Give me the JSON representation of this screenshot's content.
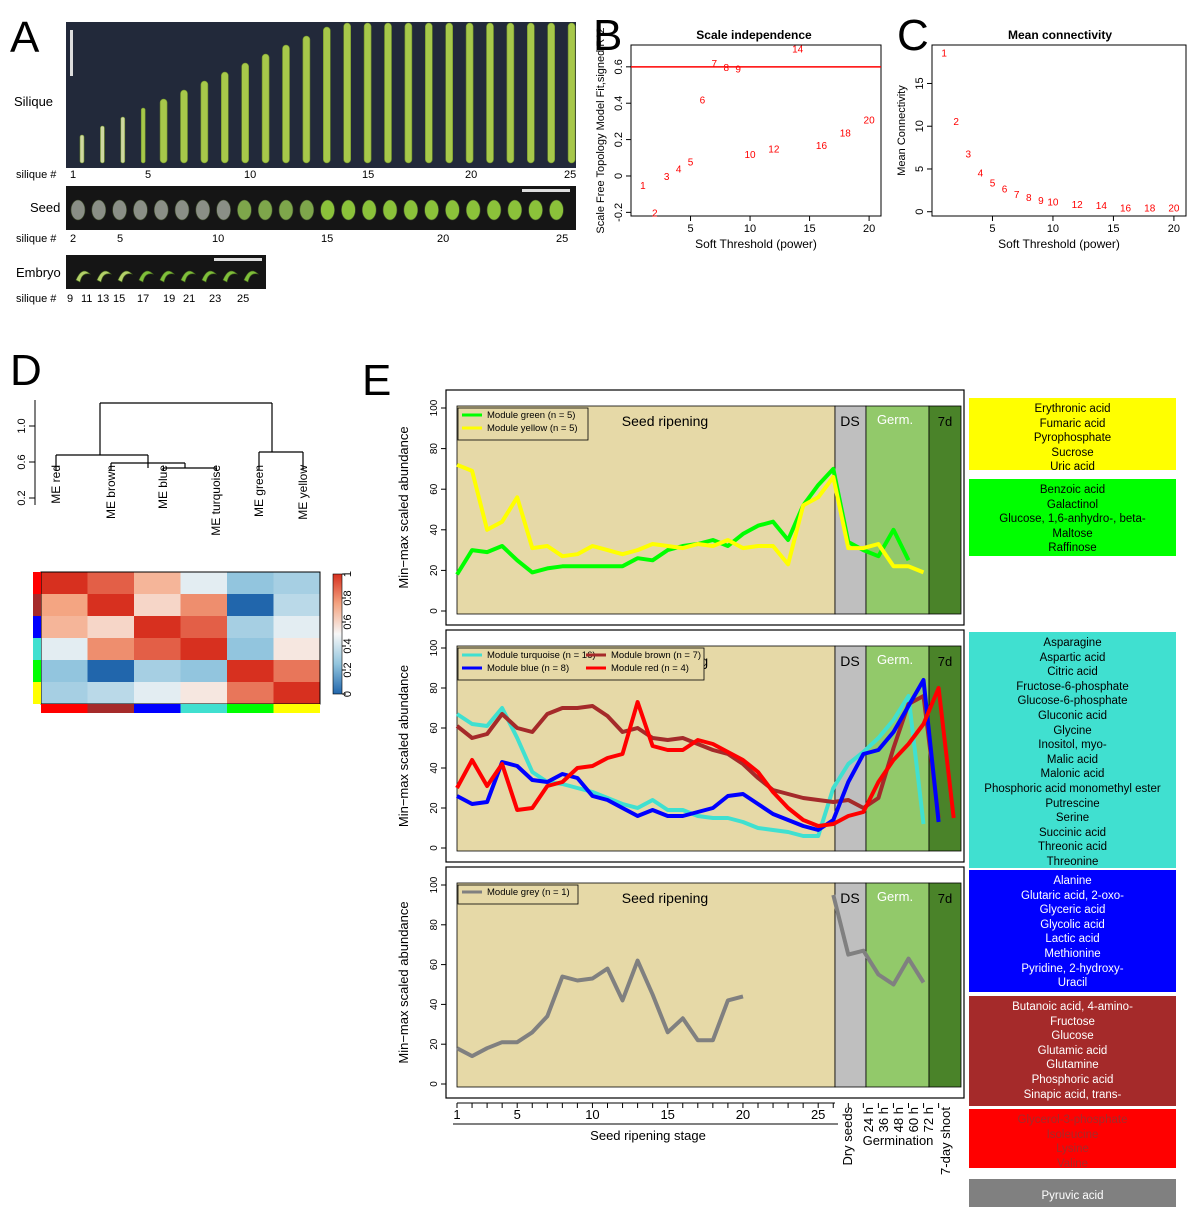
{
  "panels": {
    "A": {
      "letter": "A",
      "rows": [
        {
          "label": "Silique",
          "sublabel": "silique #",
          "ticks": [
            "1",
            "5",
            "10",
            "15",
            "20",
            "25"
          ]
        },
        {
          "label": "Seed",
          "sublabel": "silique #",
          "ticks": [
            "2",
            "5",
            "10",
            "15",
            "20",
            "25"
          ]
        },
        {
          "label": "Embryo",
          "sublabel": "silique #",
          "ticks": [
            "9",
            "11",
            "13",
            "15",
            "17",
            "19",
            "21",
            "23",
            "25"
          ]
        }
      ]
    },
    "B": {
      "letter": "B"
    },
    "C": {
      "letter": "C"
    },
    "D": {
      "letter": "D",
      "dendrogram_yticks": [
        "0.2",
        "0.6",
        "1.0"
      ],
      "leaves": [
        "ME red",
        "ME brown",
        "ME blue",
        "ME turquoise",
        "ME green",
        "ME yellow"
      ],
      "heatmap_row_colors": [
        "#ff0000",
        "#a52a2a",
        "#0000ff",
        "#40e0d0",
        "#00ff00",
        "#ffff00"
      ],
      "heatmap_values": [
        [
          1.0,
          0.9,
          0.7,
          0.45,
          0.25,
          0.3
        ],
        [
          0.75,
          1.0,
          0.6,
          0.8,
          0.0,
          0.35
        ],
        [
          0.7,
          0.6,
          1.0,
          0.9,
          0.3,
          0.45
        ],
        [
          0.45,
          0.8,
          0.9,
          1.0,
          0.25,
          0.55
        ],
        [
          0.25,
          0.0,
          0.3,
          0.25,
          1.0,
          0.85
        ],
        [
          0.3,
          0.35,
          0.45,
          0.55,
          0.85,
          1.0
        ]
      ],
      "scale_ticks": [
        "1",
        "0.8",
        "0.6",
        "0.4",
        "0.2",
        "0"
      ]
    },
    "E": {
      "letter": "E",
      "region_labels": {
        "ripening": "Seed ripening",
        "ds": "DS",
        "germ": "Germ.",
        "shoot": "7d"
      },
      "ylabel": "Min−max scaled abundance",
      "yticks": [
        "0",
        "20",
        "40",
        "60",
        "80",
        "100"
      ],
      "xticks_numbers": [
        "1",
        "5",
        "10",
        "15",
        "20",
        "25"
      ],
      "xticks_rotated": [
        "Dry seeds",
        "24 h",
        "36 h",
        "48 h",
        "60 h",
        "72 h",
        "7-day shoot"
      ],
      "xlabel_ripening": "Seed ripening stage",
      "xlabel_germination": "Germination",
      "legends": [
        [
          "Module green (n = 5)",
          "Module yellow (n = 5)"
        ],
        [
          "Module turquoise (n = 16)",
          "Module brown (n = 7)",
          "Module blue (n = 8)",
          "Module red (n = 4)"
        ],
        [
          "Module grey (n = 1)"
        ]
      ],
      "metabolite_boxes": [
        {
          "color": "#ffff00",
          "text_color": "#000000",
          "items": [
            "Erythronic acid",
            "Fumaric acid",
            "Pyrophosphate",
            "Sucrose",
            "Uric acid"
          ]
        },
        {
          "color": "#00ff00",
          "text_color": "#000000",
          "items": [
            "Benzoic acid",
            "Galactinol",
            "Glucose, 1,6-anhydro-, beta-",
            "Maltose",
            "Raffinose"
          ]
        },
        {
          "color": "#40e0d0",
          "text_color": "#000000",
          "items": [
            "Asparagine",
            "Aspartic acid",
            "Citric acid",
            "Fructose-6-phosphate",
            "Glucose-6-phosphate",
            "Gluconic acid",
            "Glycine",
            "Inositol, myo-",
            "Malic acid",
            "Malonic acid",
            "Phosphoric acid monomethyl ester",
            "Putrescine",
            "Serine",
            "Succinic acid",
            "Threonic acid",
            "Threonine"
          ]
        },
        {
          "color": "#0000ff",
          "text_color": "#ffffff",
          "items": [
            "Alanine",
            "Glutaric acid, 2-oxo-",
            "Glyceric acid",
            "Glycolic acid",
            "Lactic acid",
            "Methionine",
            "Pyridine, 2-hydroxy-",
            "Uracil"
          ]
        },
        {
          "color": "#a52a2a",
          "text_color": "#ffffff",
          "items": [
            "Butanoic acid, 4-amino-",
            "Fructose",
            "Glucose",
            "Glutamic acid",
            "Glutamine",
            "Phosphoric acid",
            "Sinapic acid, trans-"
          ]
        },
        {
          "color": "#ff0000",
          "text_color": "#a52a2a",
          "items": [
            "Glycerol-3-phosphate",
            "Isoleucine",
            "Lysine",
            "Valine"
          ]
        },
        {
          "color": "#808080",
          "text_color": "#ffffff",
          "items": [
            "Pyruvic acid"
          ]
        }
      ]
    }
  },
  "chart_data": [
    {
      "panel": "B",
      "type": "scatter",
      "title": "Scale independence",
      "xlabel": "Soft Threshold (power)",
      "ylabel": "Scale Free Topology Model Fit,signed R^2",
      "xlim": [
        0,
        21
      ],
      "ylim": [
        -0.22,
        0.72
      ],
      "xticks": [
        5,
        10,
        15,
        20
      ],
      "yticks": [
        -0.2,
        0.0,
        0.2,
        0.4,
        0.6
      ],
      "hline": 0.6,
      "points": [
        {
          "x": 1,
          "y": -0.05,
          "label": "1"
        },
        {
          "x": 2,
          "y": -0.2,
          "label": "2"
        },
        {
          "x": 3,
          "y": 0.0,
          "label": "3"
        },
        {
          "x": 4,
          "y": 0.04,
          "label": "4"
        },
        {
          "x": 5,
          "y": 0.08,
          "label": "5"
        },
        {
          "x": 6,
          "y": 0.42,
          "label": "6"
        },
        {
          "x": 7,
          "y": 0.62,
          "label": "7"
        },
        {
          "x": 8,
          "y": 0.6,
          "label": "8"
        },
        {
          "x": 9,
          "y": 0.59,
          "label": "9"
        },
        {
          "x": 10,
          "y": 0.12,
          "label": "10"
        },
        {
          "x": 12,
          "y": 0.15,
          "label": "12"
        },
        {
          "x": 14,
          "y": 0.7,
          "label": "14"
        },
        {
          "x": 16,
          "y": 0.17,
          "label": "16"
        },
        {
          "x": 18,
          "y": 0.24,
          "label": "18"
        },
        {
          "x": 20,
          "y": 0.31,
          "label": "20"
        }
      ]
    },
    {
      "panel": "C",
      "type": "scatter",
      "title": "Mean connectivity",
      "xlabel": "Soft Threshold (power)",
      "ylabel": "Mean Connectivity",
      "xlim": [
        0,
        21
      ],
      "ylim": [
        -0.5,
        19.5
      ],
      "xticks": [
        5,
        10,
        15,
        20
      ],
      "yticks": [
        0,
        5,
        10,
        15
      ],
      "points": [
        {
          "x": 1,
          "y": 18.6,
          "label": "1"
        },
        {
          "x": 2,
          "y": 10.6,
          "label": "2"
        },
        {
          "x": 3,
          "y": 6.8,
          "label": "3"
        },
        {
          "x": 4,
          "y": 4.6,
          "label": "4"
        },
        {
          "x": 5,
          "y": 3.4,
          "label": "5"
        },
        {
          "x": 6,
          "y": 2.7,
          "label": "6"
        },
        {
          "x": 7,
          "y": 2.1,
          "label": "7"
        },
        {
          "x": 8,
          "y": 1.7,
          "label": "8"
        },
        {
          "x": 9,
          "y": 1.4,
          "label": "9"
        },
        {
          "x": 10,
          "y": 1.2,
          "label": "10"
        },
        {
          "x": 12,
          "y": 0.9,
          "label": "12"
        },
        {
          "x": 14,
          "y": 0.8,
          "label": "14"
        },
        {
          "x": 16,
          "y": 0.5,
          "label": "16"
        },
        {
          "x": 18,
          "y": 0.5,
          "label": "18"
        },
        {
          "x": 20,
          "y": 0.5,
          "label": "20"
        }
      ]
    },
    {
      "panel": "E1",
      "type": "line",
      "ylim": [
        0,
        100
      ],
      "series": [
        {
          "name": "Module green (n = 5)",
          "color": "#00ff00",
          "values": [
            18,
            30,
            29,
            32,
            25,
            19,
            21,
            22,
            22,
            22,
            22,
            22,
            26,
            25,
            30,
            32,
            33,
            35,
            32,
            38,
            42,
            44,
            35,
            52,
            62,
            70,
            34,
            30,
            27,
            40,
            25
          ]
        },
        {
          "name": "Module yellow (n = 5)",
          "color": "#ffff00",
          "values": [
            72,
            69,
            40,
            44,
            56,
            31,
            32,
            27,
            28,
            32,
            30,
            28,
            30,
            33,
            32,
            31,
            33,
            32,
            35,
            31,
            32,
            32,
            23,
            52,
            56,
            66,
            31,
            31,
            33,
            22,
            22,
            19
          ]
        }
      ]
    },
    {
      "panel": "E2",
      "type": "line",
      "ylim": [
        0,
        100
      ],
      "series": [
        {
          "name": "Module turquoise (n = 16)",
          "color": "#40e0d0",
          "values": [
            67,
            62,
            61,
            70,
            55,
            38,
            33,
            32,
            30,
            28,
            25,
            22,
            20,
            24,
            19,
            19,
            16,
            15,
            15,
            13,
            10,
            9,
            8,
            6,
            6,
            30,
            42,
            48,
            55,
            64,
            76,
            12
          ]
        },
        {
          "name": "Module brown (n = 7)",
          "color": "#a52a2a",
          "values": [
            61,
            55,
            57,
            67,
            60,
            58,
            67,
            70,
            70,
            71,
            66,
            58,
            60,
            55,
            54,
            55,
            52,
            49,
            47,
            42,
            35,
            29,
            27,
            25,
            24,
            23,
            24,
            20,
            25,
            50,
            72,
            76,
            15
          ]
        },
        {
          "name": "Module blue (n = 8)",
          "color": "#0000ff",
          "values": [
            26,
            22,
            23,
            43,
            41,
            34,
            33,
            37,
            35,
            26,
            24,
            20,
            16,
            19,
            16,
            16,
            18,
            20,
            26,
            27,
            22,
            17,
            14,
            11,
            9,
            14,
            33,
            47,
            49,
            58,
            71,
            84,
            13
          ]
        },
        {
          "name": "Module red (n = 4)",
          "color": "#ff0000",
          "values": [
            30,
            44,
            31,
            42,
            19,
            20,
            31,
            33,
            40,
            41,
            45,
            47,
            73,
            51,
            49,
            49,
            54,
            52,
            48,
            44,
            38,
            28,
            20,
            14,
            11,
            12,
            16,
            18,
            33,
            44,
            52,
            62,
            80,
            15
          ]
        }
      ]
    },
    {
      "panel": "E3",
      "type": "line",
      "ylim": [
        0,
        100
      ],
      "series": [
        {
          "name": "Module grey (n = 1)",
          "color": "#808080",
          "values": [
            18,
            14,
            18,
            21,
            21,
            26,
            34,
            54,
            52,
            53,
            58,
            42,
            62,
            45,
            26,
            33,
            22,
            22,
            42,
            44,
            null,
            null,
            null,
            null,
            null,
            95,
            65,
            67,
            55,
            50,
            63,
            51
          ]
        }
      ]
    }
  ]
}
